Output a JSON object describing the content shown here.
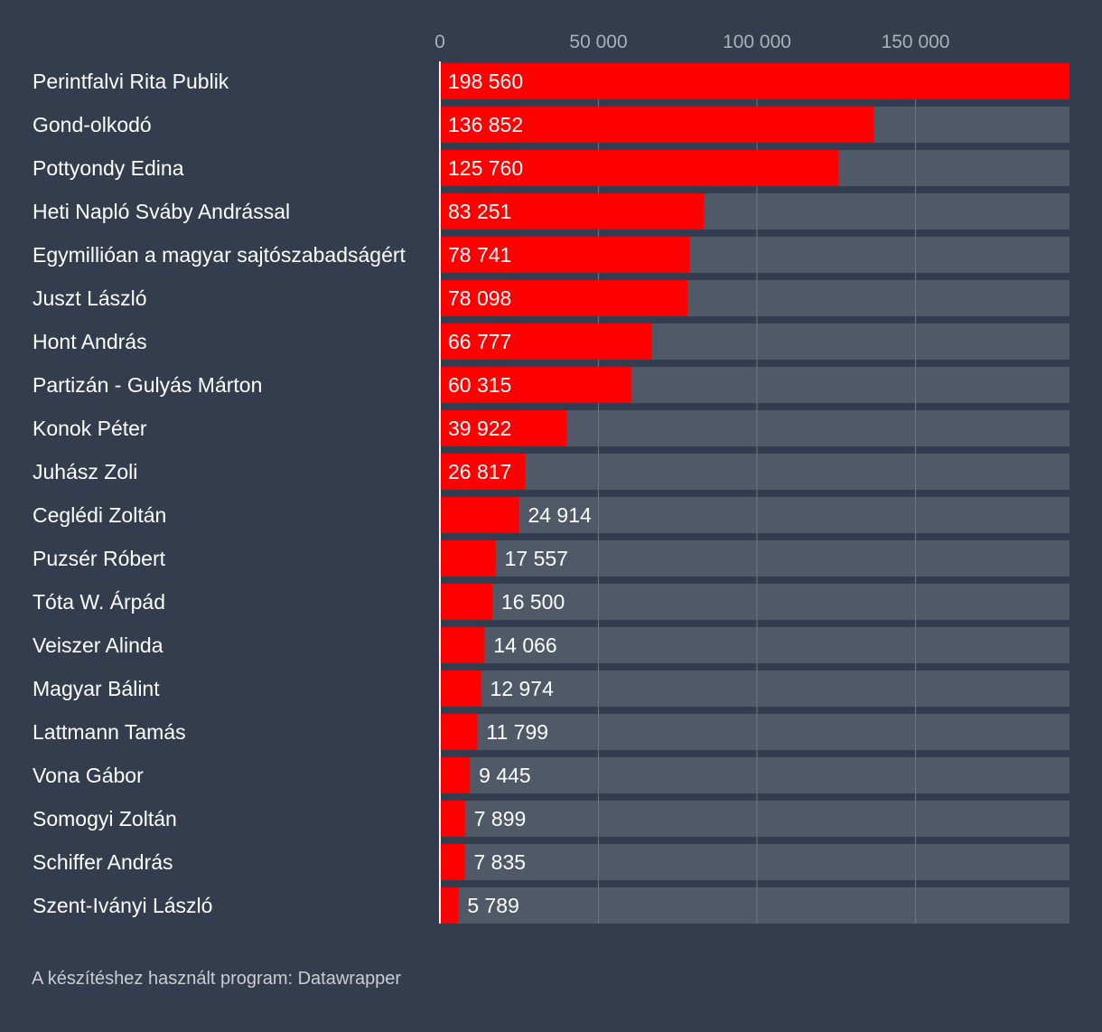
{
  "chart_data": {
    "type": "bar",
    "orientation": "horizontal",
    "categories": [
      "Perintfalvi Rita Publik",
      "Gond-olkodó",
      "Pottyondy Edina",
      "Heti Napló Sváby Andrással",
      "Egymillióan a magyar sajtószabadságért",
      "Juszt László",
      "Hont András",
      "Partizán - Gulyás Márton",
      "Konok Péter",
      "Juhász Zoli",
      "Ceglédi Zoltán",
      "Puzsér Róbert",
      "Tóta W. Árpád",
      "Veiszer Alinda",
      "Magyar Bálint",
      "Lattmann Tamás",
      "Vona Gábor",
      "Somogyi Zoltán",
      "Schiffer András",
      "Szent-Iványi László"
    ],
    "values": [
      198560,
      136852,
      125760,
      83251,
      78741,
      78098,
      66777,
      60315,
      39922,
      26817,
      24914,
      17557,
      16500,
      14066,
      12974,
      11799,
      9445,
      7899,
      7835,
      5789
    ],
    "value_labels": [
      "198 560",
      "136 852",
      "125 760",
      "83 251",
      "78 741",
      "78 098",
      "66 777",
      "60 315",
      "39 922",
      "26 817",
      "24 914",
      "17 557",
      "16 500",
      "14 066",
      "12 974",
      "11 799",
      "9 445",
      "7 899",
      "7 835",
      "5 789"
    ],
    "xlim": [
      0,
      198560
    ],
    "xticks": [
      0,
      50000,
      100000,
      150000
    ],
    "xtick_labels": [
      "0",
      "50 000",
      "100 000",
      "150 000"
    ],
    "grid": true,
    "title": "",
    "xlabel": "",
    "ylabel": ""
  },
  "footer": {
    "source_text": "A készítéshez használt program: Datawrapper"
  },
  "colors": {
    "background": "#333d4d",
    "bar": "#ff0000",
    "bar_track": "#4f5968",
    "text": "#ffffff",
    "tick_text": "#aab0b8",
    "gridline": "#6b7482"
  }
}
